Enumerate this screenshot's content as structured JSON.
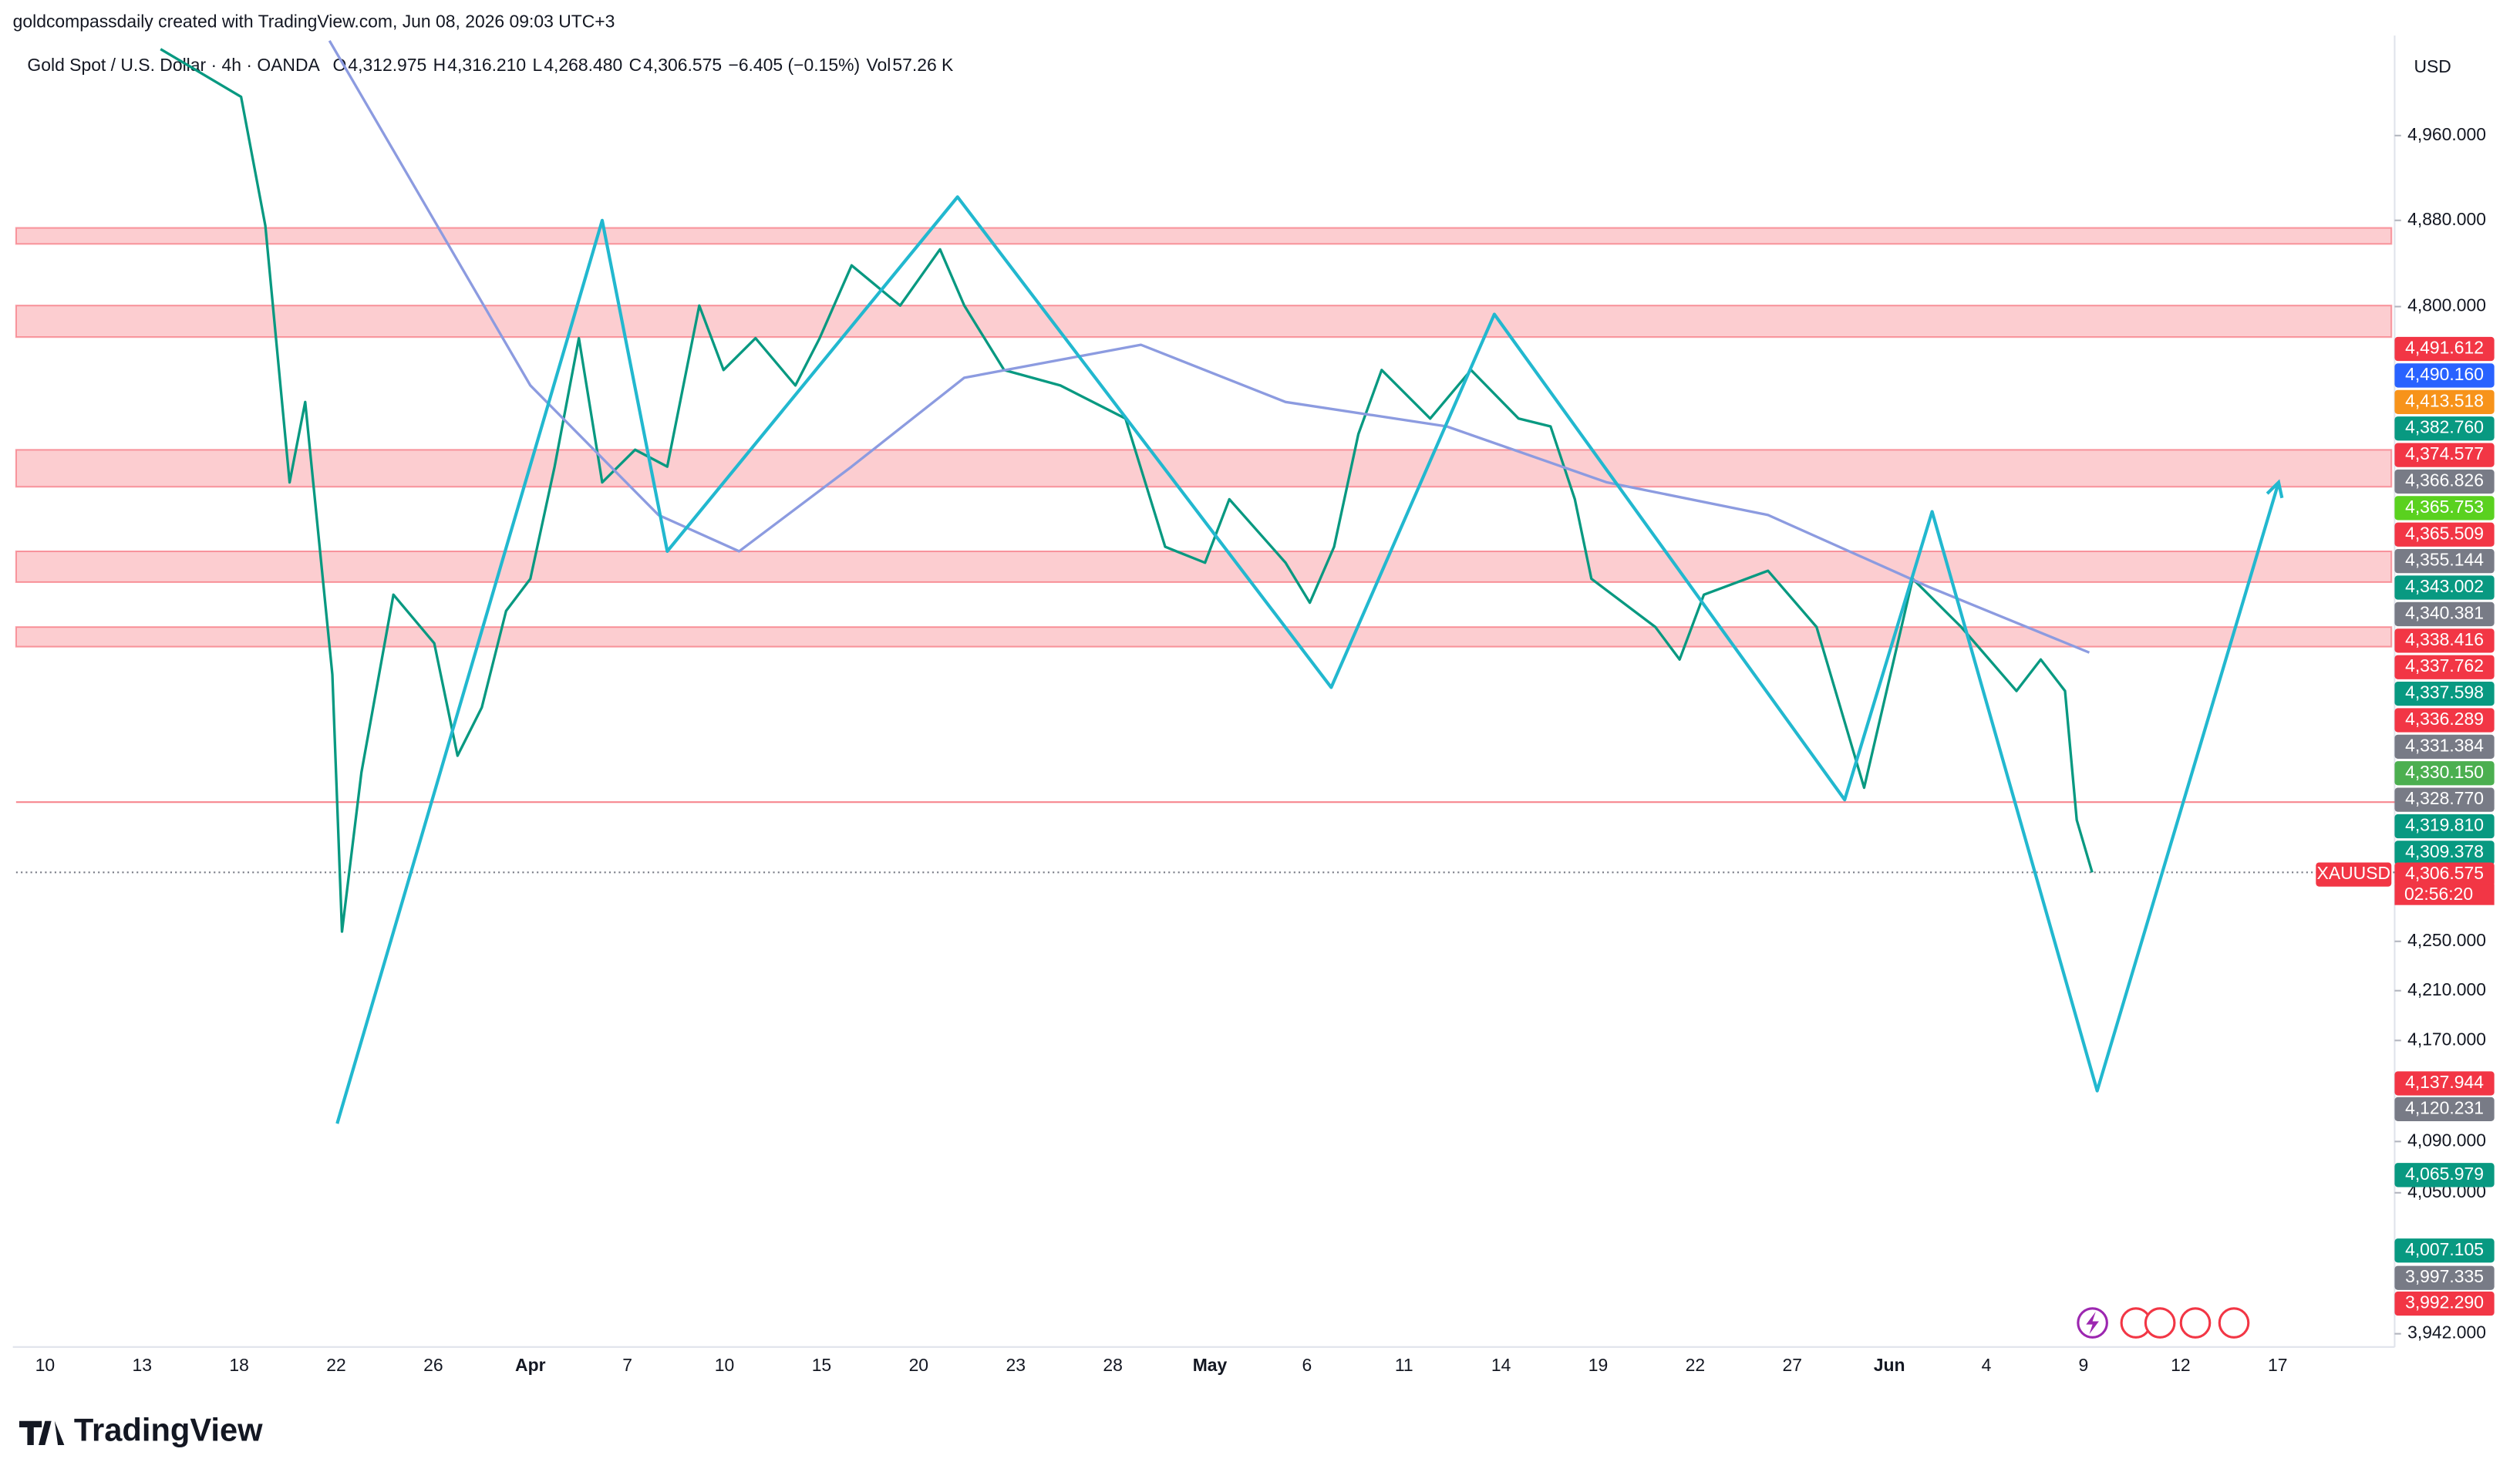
{
  "header": "goldcompassdaily created with TradingView.com, Jun 08, 2026 09:03 UTC+3",
  "footer": "TradingView",
  "chart_data": {
    "type": "line",
    "symbol": "Gold Spot / U.S. Dollar · 4h · OANDA",
    "ohlc": [
      {
        "key": "O",
        "text": "4,312.975"
      },
      {
        "key": "H",
        "text": "4,316.210"
      },
      {
        "key": "L",
        "text": "4,268.480"
      },
      {
        "key": "C",
        "text": "4,306.575"
      }
    ],
    "change": "−6.405 (−0.15%)",
    "volume": {
      "key": "Vol",
      "text": "57.26 K"
    },
    "currency": "USD",
    "symbol_tag": "XAUUSD",
    "countdown": "02:56:20",
    "log_scale": true,
    "ylim": [
      3932,
      5056
    ],
    "yticks": [
      {
        "value": 4960,
        "label": "4,960.000"
      },
      {
        "value": 4880,
        "label": "4,880.000"
      },
      {
        "value": 4800,
        "label": "4,800.000"
      },
      {
        "value": 4250,
        "label": "4,250.000"
      },
      {
        "value": 4210,
        "label": "4,210.000"
      },
      {
        "value": 4170,
        "label": "4,170.000"
      },
      {
        "value": 4090,
        "label": "4,090.000"
      },
      {
        "value": 4050,
        "label": "4,050.000"
      },
      {
        "value": 3942,
        "label": "3,942.000"
      }
    ],
    "categories": [
      "10",
      "13",
      "18",
      "22",
      "26",
      "Apr",
      "7",
      "10",
      "15",
      "20",
      "23",
      "28",
      "May",
      "6",
      "11",
      "14",
      "19",
      "22",
      "27",
      "Jun",
      "4",
      "9",
      "12",
      "17"
    ],
    "series": [
      {
        "color": "#089981",
        "x": [
          1.19,
          2.02,
          2.27,
          2.52,
          2.68,
          2.96,
          3.06,
          3.26,
          3.59,
          4.01,
          4.25,
          4.5,
          4.75,
          5.0,
          5.25,
          5.5,
          5.74,
          6.08,
          6.41,
          6.74,
          6.99,
          7.32,
          7.73,
          7.98,
          8.31,
          8.81,
          9.22,
          9.47,
          9.88,
          10.46,
          11.13,
          11.54,
          11.95,
          12.2,
          12.78,
          13.03,
          13.28,
          13.53,
          13.77,
          14.27,
          14.69,
          15.18,
          15.51,
          15.76,
          15.93,
          16.59,
          16.84,
          17.09,
          17.75,
          18.25,
          18.74,
          19.24,
          19.74,
          20.31,
          20.56,
          20.81,
          20.93,
          21.09
        ],
        "values": [
          5043,
          4997,
          4875,
          4641,
          4713,
          4473,
          4258,
          4390,
          4542,
          4500,
          4404,
          4445,
          4528,
          4556,
          4655,
          4771,
          4641,
          4670,
          4655,
          4801,
          4742,
          4771,
          4728,
          4771,
          4838,
          4801,
          4853,
          4801,
          4742,
          4728,
          4698,
          4584,
          4570,
          4626,
          4570,
          4535,
          4584,
          4684,
          4742,
          4698,
          4742,
          4698,
          4691,
          4626,
          4556,
          4514,
          4486,
          4542,
          4563,
          4514,
          4377,
          4556,
          4514,
          4459,
          4486,
          4459,
          4350,
          4306.575
        ]
      },
      {
        "color": "#8c9be0",
        "x": [
          2.93,
          5.0,
          6.32,
          7.15,
          8.31,
          9.47,
          11.29,
          12.78,
          14.44,
          16.09,
          17.75,
          19.4,
          21.06
        ],
        "values": [
          5051,
          4728,
          4612,
          4580,
          4655,
          4735,
          4765,
          4713,
          4691,
          4641,
          4612,
          4549,
          4492
        ]
      },
      {
        "color": "#22b8cf",
        "x": [
          3.01,
          5.74,
          6.41,
          9.4,
          13.25,
          14.93,
          18.54,
          19.44,
          21.14,
          23.01
        ],
        "values": [
          4104,
          4880,
          4580,
          4902,
          4462,
          4793,
          4367,
          4615,
          4130,
          4641
        ]
      }
    ],
    "zones": [
      [
        4858,
        4873
      ],
      [
        4772,
        4801
      ],
      [
        4637,
        4670
      ],
      [
        4553,
        4580
      ],
      [
        4497,
        4514
      ]
    ],
    "zone_color": "#f23645",
    "level_line": 4365,
    "last_price": 4306.575,
    "price_badges": [
      {
        "value": 4491.612,
        "label": "4,491.612",
        "color": "#f23645"
      },
      {
        "value": 4490.16,
        "label": "4,490.160",
        "color": "#2962ff"
      },
      {
        "value": 4413.518,
        "label": "4,413.518",
        "color": "#f7931a"
      },
      {
        "value": 4382.76,
        "label": "4,382.760",
        "color": "#089981"
      },
      {
        "value": 4374.577,
        "label": "4,374.577",
        "color": "#f23645"
      },
      {
        "value": 4366.826,
        "label": "4,366.826",
        "color": "#787b86"
      },
      {
        "value": 4365.753,
        "label": "4,365.753",
        "color": "#5ad11f"
      },
      {
        "value": 4365.509,
        "label": "4,365.509",
        "color": "#f23645"
      },
      {
        "value": 4355.144,
        "label": "4,355.144",
        "color": "#787b86"
      },
      {
        "value": 4343.002,
        "label": "4,343.002",
        "color": "#089981"
      },
      {
        "value": 4340.381,
        "label": "4,340.381",
        "color": "#787b86"
      },
      {
        "value": 4338.416,
        "label": "4,338.416",
        "color": "#f23645"
      },
      {
        "value": 4337.762,
        "label": "4,337.762",
        "color": "#f23645"
      },
      {
        "value": 4337.598,
        "label": "4,337.598",
        "color": "#089981"
      },
      {
        "value": 4336.289,
        "label": "4,336.289",
        "color": "#f23645"
      },
      {
        "value": 4331.384,
        "label": "4,331.384",
        "color": "#787b86"
      },
      {
        "value": 4330.15,
        "label": "4,330.150",
        "color": "#4caf50"
      },
      {
        "value": 4328.77,
        "label": "4,328.770",
        "color": "#787b86"
      },
      {
        "value": 4319.81,
        "label": "4,319.810",
        "color": "#089981"
      },
      {
        "value": 4309.378,
        "label": "4,309.378",
        "color": "#089981"
      },
      {
        "value": 4306.575,
        "label": "4,306.575",
        "color": "#f23645"
      },
      {
        "value": 4137.944,
        "label": "4,137.944",
        "color": "#f23645"
      },
      {
        "value": 4120.231,
        "label": "4,120.231",
        "color": "#787b86"
      },
      {
        "value": 4065.979,
        "label": "4,065.979",
        "color": "#089981"
      },
      {
        "value": 4007.105,
        "label": "4,007.105",
        "color": "#089981"
      },
      {
        "value": 3997.335,
        "label": "3,997.335",
        "color": "#787b86"
      },
      {
        "value": 3992.29,
        "label": "3,992.290",
        "color": "#f23645"
      }
    ]
  }
}
